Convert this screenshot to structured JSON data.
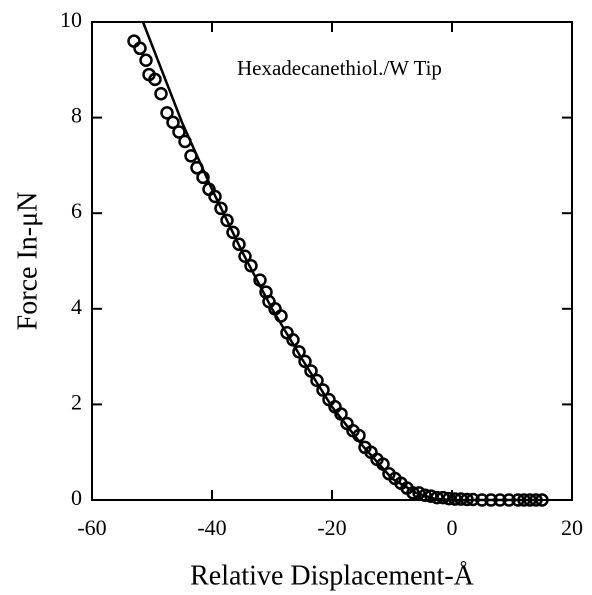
{
  "chart_data": {
    "type": "scatter",
    "annotation": "Hexadecanethiol./W Tip",
    "xlabel": "Relative Displacement-Å",
    "ylabel": "Force In-μN",
    "xlim": [
      -60,
      20
    ],
    "xticks": [
      -60,
      -40,
      -20,
      0,
      20
    ],
    "ylim": [
      0,
      10
    ],
    "yticks": [
      0,
      2,
      4,
      6,
      8,
      10
    ],
    "series": [
      {
        "type": "scatter",
        "marker": "open-circle",
        "color": "#000000",
        "x": [
          -53,
          -52,
          -51,
          -50.5,
          -49.5,
          -48.5,
          -47.5,
          -46.5,
          -45.5,
          -44.5,
          -43.5,
          -42.5,
          -41.5,
          -40.5,
          -39.5,
          -38.5,
          -37.5,
          -36.5,
          -35.5,
          -34.5,
          -33.5,
          -32,
          -31,
          -30.5,
          -29.5,
          -28.5,
          -27.5,
          -26.5,
          -25.5,
          -24.5,
          -23.5,
          -22.5,
          -21.5,
          -20.5,
          -19.5,
          -18.5,
          -17.5,
          -16.5,
          -15.5,
          -14.5,
          -13.5,
          -12.5,
          -11.5,
          -10.5,
          -9.5,
          -8.5,
          -7.5,
          -6.5,
          -5.5,
          -4.5,
          -3.5,
          -2.5,
          -1.5,
          -0.5,
          0.5,
          1.5,
          2.5,
          3.5,
          5,
          6.5,
          8,
          9.5,
          11,
          12,
          13,
          14,
          15
        ],
        "values": [
          9.6,
          9.45,
          9.2,
          8.9,
          8.8,
          8.5,
          8.1,
          7.9,
          7.7,
          7.5,
          7.2,
          6.95,
          6.75,
          6.5,
          6.35,
          6.1,
          5.85,
          5.6,
          5.35,
          5.1,
          4.9,
          4.6,
          4.35,
          4.15,
          4.0,
          3.85,
          3.5,
          3.35,
          3.1,
          2.9,
          2.7,
          2.5,
          2.3,
          2.1,
          1.95,
          1.8,
          1.6,
          1.45,
          1.35,
          1.1,
          1.0,
          0.85,
          0.75,
          0.55,
          0.45,
          0.35,
          0.25,
          0.15,
          0.15,
          0.1,
          0.08,
          0.05,
          0.05,
          0.03,
          0.02,
          0.02,
          0.01,
          0.01,
          0,
          0,
          0,
          0,
          0,
          0,
          0,
          0,
          0
        ]
      },
      {
        "type": "line",
        "color": "#000000",
        "x": [
          -51.5,
          -45,
          -40,
          -35,
          -30,
          -25,
          -20,
          -15,
          -10,
          -6,
          -3,
          0,
          15
        ],
        "values": [
          10,
          7.9,
          6.5,
          5.2,
          4.0,
          2.95,
          1.95,
          1.15,
          0.45,
          0.15,
          0.03,
          0,
          0
        ]
      }
    ]
  }
}
